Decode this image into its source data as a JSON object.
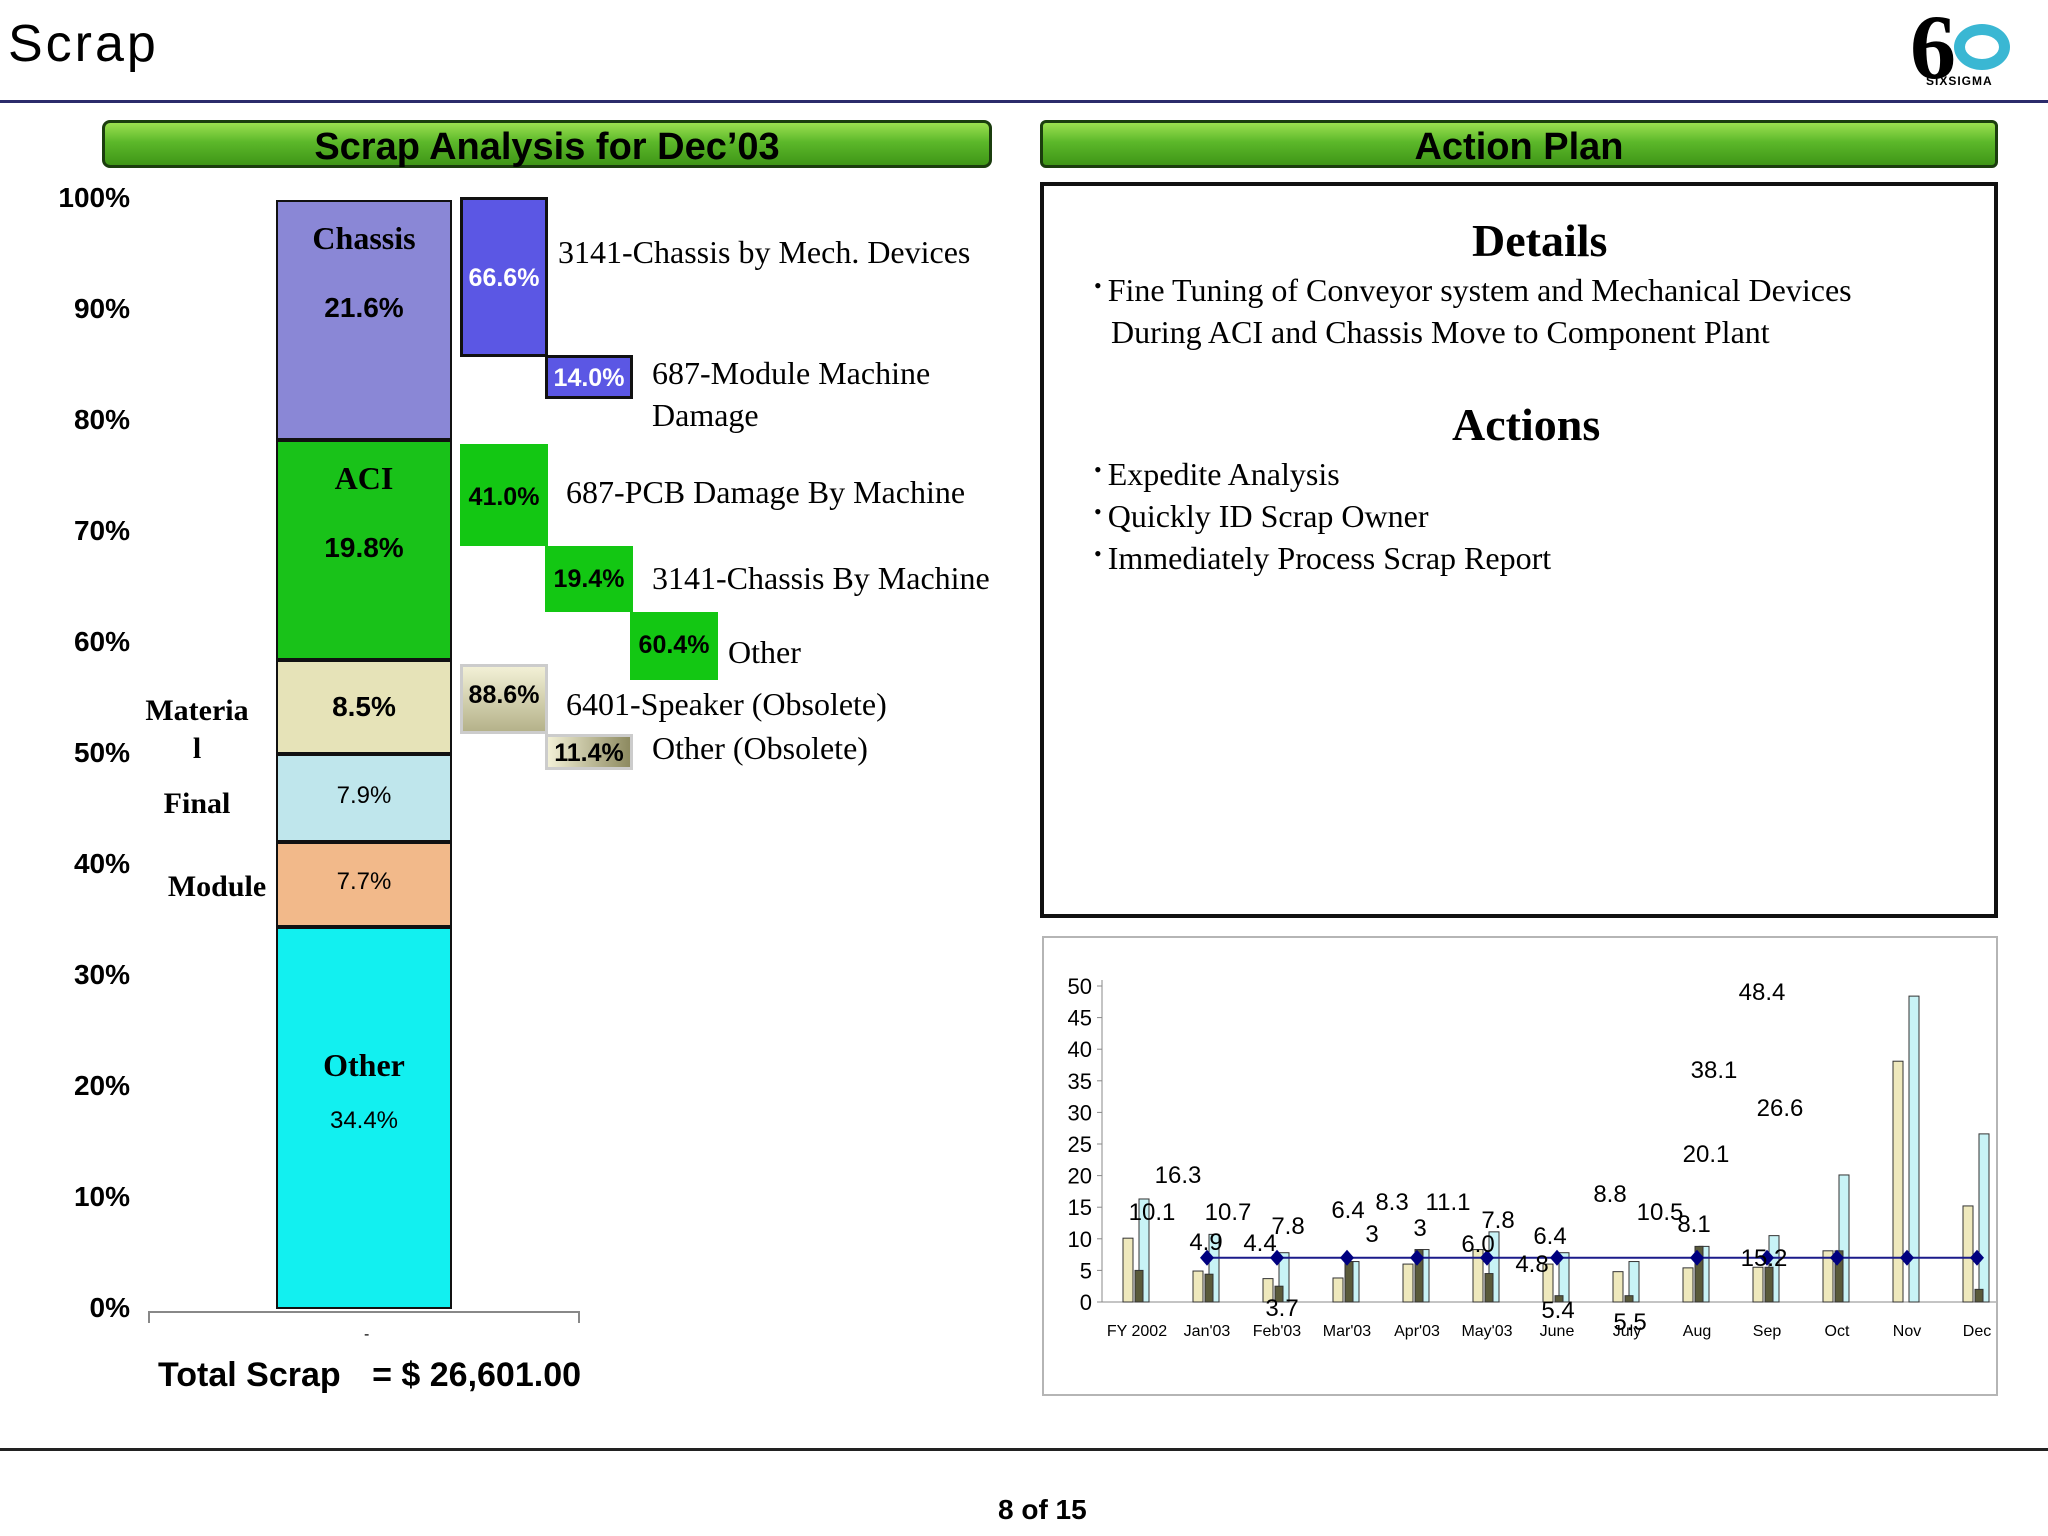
{
  "page": {
    "title": "Scrap",
    "logo": {
      "glyph": "6",
      "text": "SIXSIGMA"
    },
    "footer": "8 of 15"
  },
  "left_header": "Scrap  Analysis for Dec’03",
  "right_header": "Action Plan",
  "stack": {
    "yticks": [
      "100%",
      "90%",
      "80%",
      "70%",
      "60%",
      "50%",
      "40%",
      "30%",
      "20%",
      "10%",
      "0%"
    ],
    "segments": [
      {
        "name": "Chassis",
        "pct": "21.6%",
        "value": 21.6,
        "color": "#8a87d6"
      },
      {
        "name": "ACI",
        "pct": "19.8%",
        "value": 19.8,
        "color": "#19c219"
      },
      {
        "name": "",
        "side": "Materia\nl",
        "pct": "8.5%",
        "value": 8.5,
        "color": "#e6e3b8"
      },
      {
        "name": "",
        "side": "Final",
        "pct": "7.9%",
        "value": 7.9,
        "color": "#bfe6ec"
      },
      {
        "name": "",
        "side": "Module",
        "pct": "7.7%",
        "value": 7.7,
        "color": "#f2b98a"
      },
      {
        "name": "Other",
        "pct": "34.4%",
        "value": 34.4,
        "color": "#12f0f0"
      }
    ],
    "breakdown": [
      {
        "pct": "66.6%",
        "label": "3141-Chassis by Mech. Devices"
      },
      {
        "pct": "14.0%",
        "label": "687-Module Machine Damage"
      },
      {
        "pct": "41.0%",
        "label": "687-PCB Damage By Machine"
      },
      {
        "pct": "19.4%",
        "label": "3141-Chassis By Machine"
      },
      {
        "pct": "60.4%",
        "label": "Other"
      },
      {
        "pct": "88.6%",
        "label": "6401-Speaker (Obsolete)"
      },
      {
        "pct": "11.4%",
        "label": "Other (Obsolete)"
      }
    ],
    "total_label": "Total Scrap",
    "total_value": "= $ 26,601.00",
    "dash": "-"
  },
  "details": {
    "heading": "Details",
    "bullets": [
      "Fine Tuning of Conveyor system and Mechanical Devices",
      "During ACI  and Chassis Move to Component Plant"
    ]
  },
  "actions": {
    "heading": "Actions",
    "bullets": [
      "Expedite Analysis",
      "Quickly ID Scrap Owner",
      "Immediately Process Scrap Report"
    ]
  },
  "chart_data": [
    {
      "type": "bar",
      "title": "Scrap  Analysis for Dec’03",
      "categories": [
        "Chassis",
        "ACI",
        "Materia l",
        "Final",
        "Module",
        "Other"
      ],
      "values": [
        21.6,
        19.8,
        8.5,
        7.9,
        7.7,
        34.4
      ],
      "ylim": [
        0,
        100
      ],
      "stacked": true,
      "ytick_labels": [
        "0%",
        "10%",
        "20%",
        "30%",
        "40%",
        "50%",
        "60%",
        "70%",
        "80%",
        "90%",
        "100%"
      ]
    },
    {
      "type": "bar",
      "categories": [
        "FY 2002",
        "Jan'03",
        "Feb'03",
        "Mar'03",
        "Apr'03",
        "May'03",
        "June",
        "July",
        "Aug",
        "Sep",
        "Oct",
        "Nov",
        "Dec"
      ],
      "series": [
        {
          "values": [
            10.1,
            4.9,
            3.7,
            3.8,
            6.0,
            8.3,
            6.0,
            4.8,
            5.4,
            5.5,
            8.1,
            38.1,
            15.2
          ]
        },
        {
          "values": [
            16.3,
            10.7,
            7.8,
            6.4,
            8.3,
            11.1,
            7.8,
            6.4,
            8.8,
            10.5,
            20.1,
            48.4,
            26.6
          ]
        },
        {
          "values": [
            5.0,
            4.4,
            2.5,
            6.4,
            8.3,
            4.5,
            1.0,
            1.0,
            8.8,
            5.5,
            8.1,
            0,
            2.0
          ]
        }
      ],
      "target_line": 7.0,
      "data_labels": [
        "10.1",
        "16.3",
        "4.9",
        "10.7",
        "4.4",
        "7.8",
        "3.7",
        "6.4",
        "3",
        "8.3",
        "3",
        "11.1",
        "6.0",
        "7.8",
        "4.8",
        "6.4",
        "5.4",
        "8.8",
        "5.5",
        "10.5",
        "8.1",
        "20.1",
        "38.1",
        "48.4",
        "26.6",
        "15.2"
      ],
      "ylim": [
        0,
        50
      ],
      "yticks": [
        0,
        5,
        10,
        15,
        20,
        25,
        30,
        35,
        40,
        45,
        50
      ],
      "colors": {
        "bar_light": "#efe9bd",
        "bar_dark": "#5a5a3a",
        "bar_cyan": "#c8f3f6",
        "line": "#1a1a8a",
        "marker": "#00007f"
      }
    }
  ]
}
